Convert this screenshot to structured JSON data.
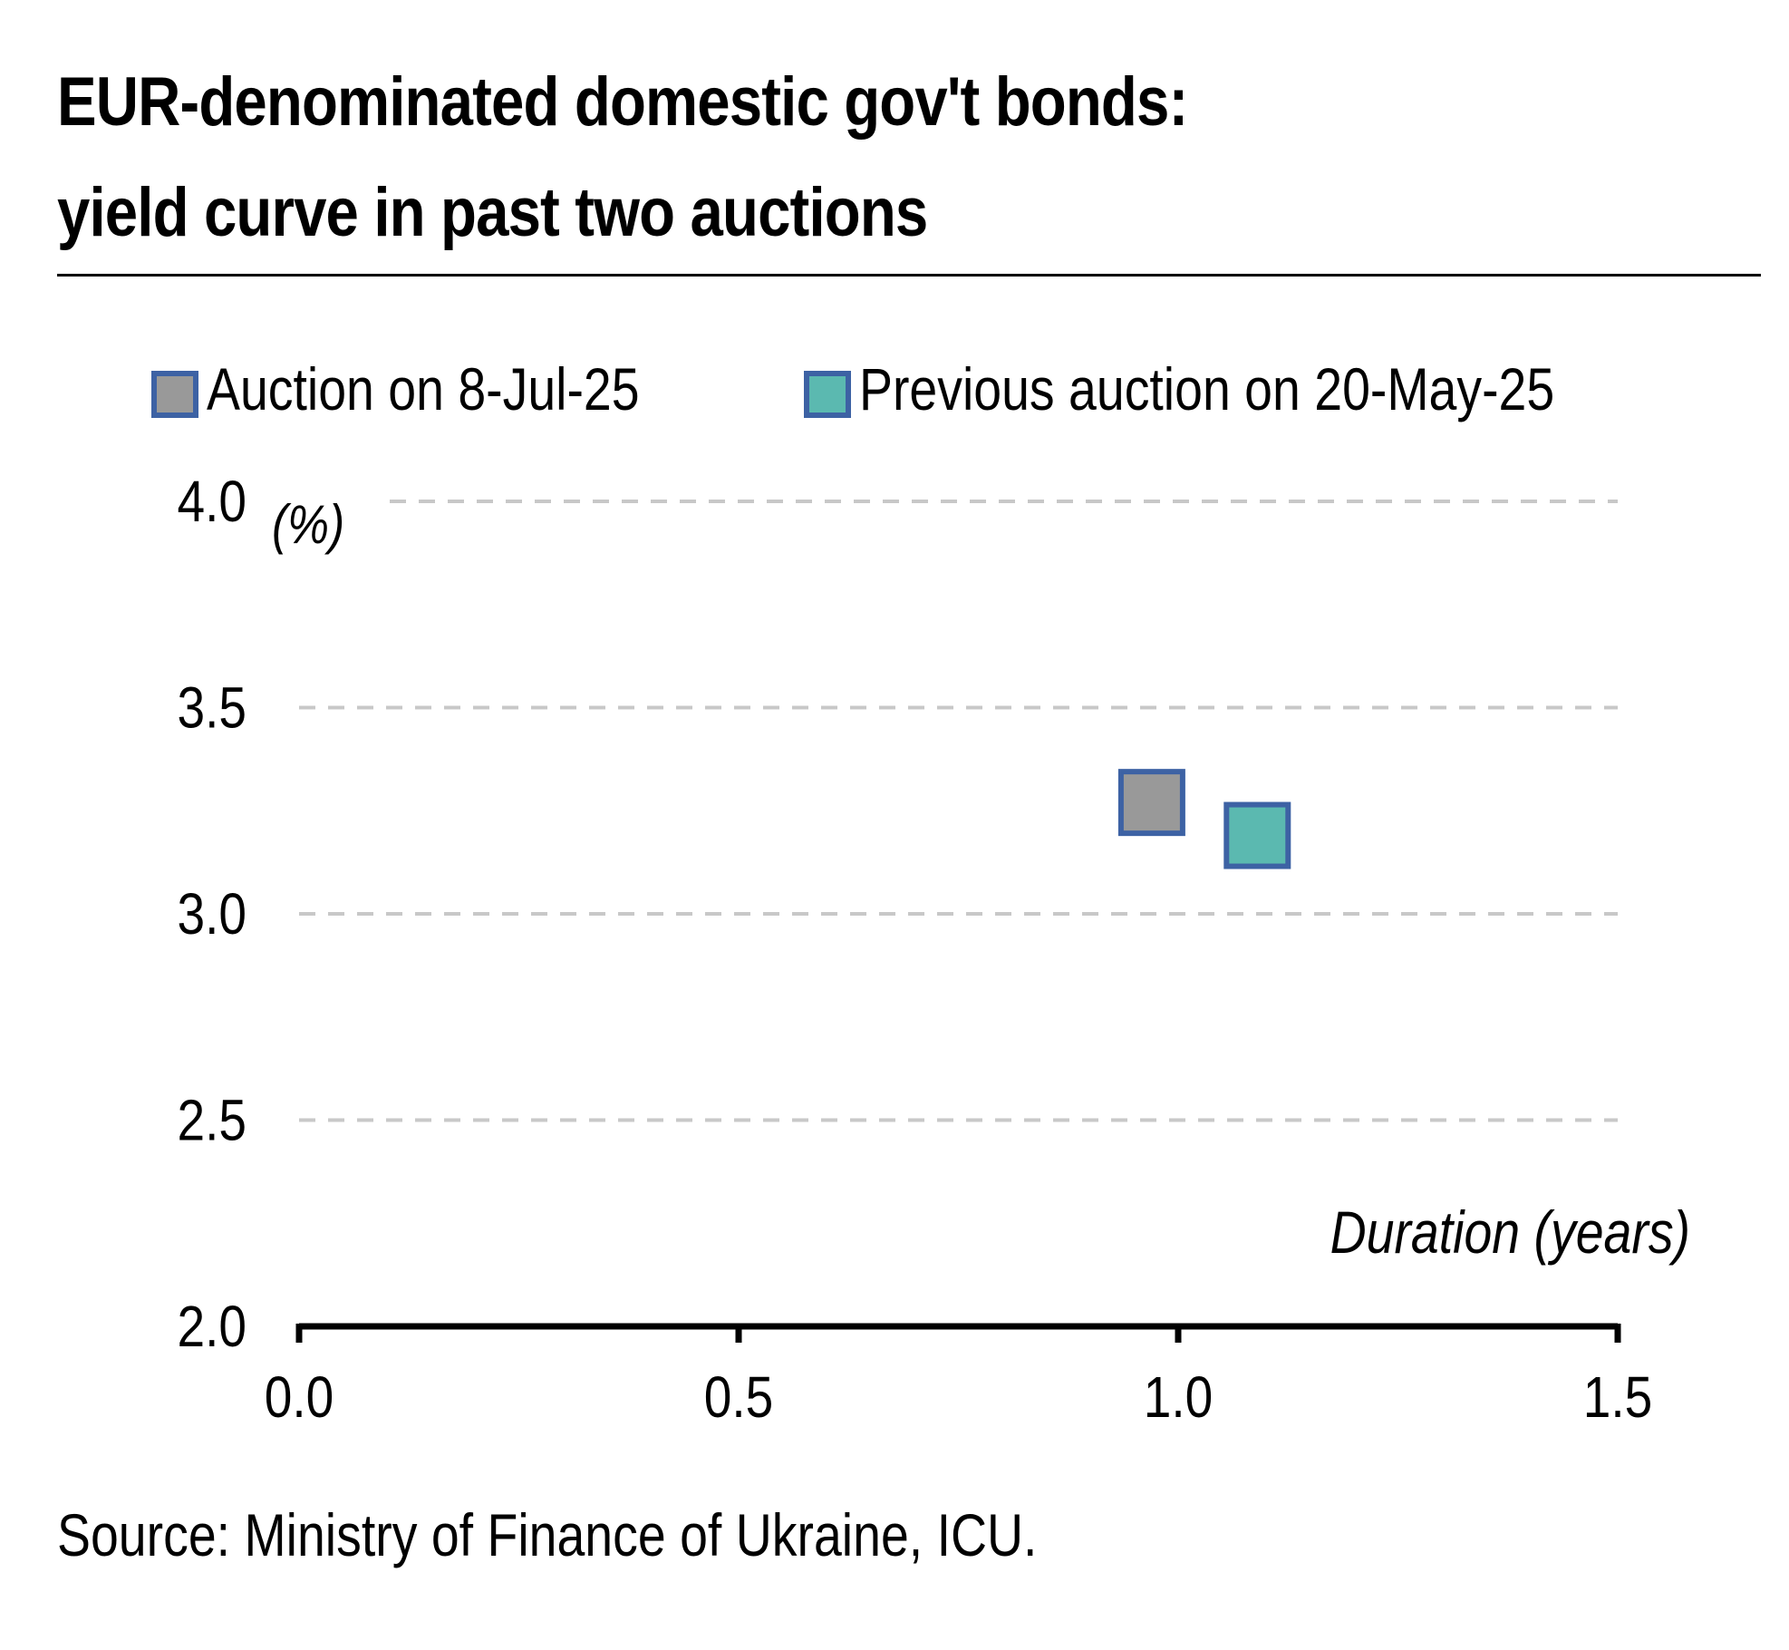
{
  "title_lines": [
    "EUR-denominated domestic gov't bonds:",
    "yield curve in past two auctions"
  ],
  "source": "Source: Ministry of Finance of Ukraine, ICU.",
  "chart_data": {
    "type": "scatter",
    "title": "EUR-denominated domestic gov't bonds: yield curve in past two auctions",
    "xlabel": "Duration (years)",
    "ylabel": "(%)",
    "xlim": [
      0.0,
      1.5
    ],
    "ylim": [
      2.0,
      4.0
    ],
    "x_ticks": [
      "0.0",
      "0.5",
      "1.0",
      "1.5"
    ],
    "y_ticks": [
      "2.0",
      "2.5",
      "3.0",
      "3.5",
      "4.0"
    ],
    "grid": "horizontal dashed",
    "legend_position": "top",
    "series": [
      {
        "name": "Auction on 8-Jul-25",
        "color": "#999999",
        "border_color": "#3d62a4",
        "marker": "square",
        "points": [
          {
            "x": 0.97,
            "y": 3.27
          }
        ]
      },
      {
        "name": "Previous auction on 20-May-25",
        "color": "#5bb9b0",
        "border_color": "#3d62a4",
        "marker": "square",
        "points": [
          {
            "x": 1.09,
            "y": 3.19
          }
        ]
      }
    ]
  }
}
